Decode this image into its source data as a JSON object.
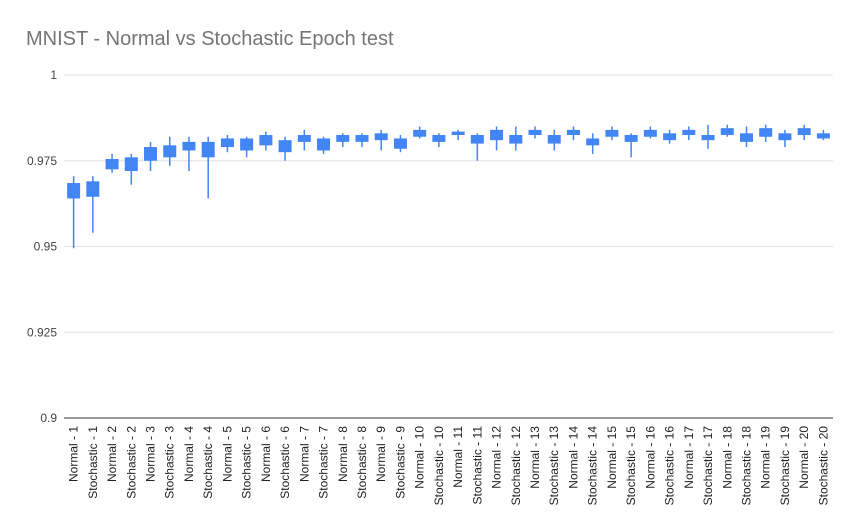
{
  "chart_data": {
    "type": "candlestick",
    "title": "MNIST - Normal vs Stochastic Epoch test",
    "xlabel": "",
    "ylabel": "",
    "ylim": [
      0.9,
      1
    ],
    "yticks": [
      "0.9",
      "0.925",
      "0.95",
      "0.975",
      "1"
    ],
    "grid": true,
    "legend": "none",
    "colors": {
      "box": "#4285f4",
      "grid": "#e0e0e0",
      "axis": "#333333",
      "title": "#757575",
      "text": "#444444"
    },
    "categories": [
      "Normal - 1",
      "Stochastic - 1",
      "Normal - 2",
      "Stochastic - 2",
      "Normal - 3",
      "Stochastic - 3",
      "Normal - 4",
      "Stochastic - 4",
      "Normal - 5",
      "Stochastic - 5",
      "Normal - 6",
      "Stochastic - 6",
      "Normal - 7",
      "Stochastic - 7",
      "Normal - 8",
      "Stochastic - 8",
      "Normal - 9",
      "Stochastic - 9",
      "Normal - 10",
      "Stochastic - 10",
      "Normal - 11",
      "Stochastic - 11",
      "Normal - 12",
      "Stochastic - 12",
      "Normal - 13",
      "Stochastic - 13",
      "Normal - 14",
      "Stochastic - 14",
      "Normal - 15",
      "Stochastic - 15",
      "Normal - 16",
      "Stochastic - 16",
      "Normal - 17",
      "Stochastic - 17",
      "Normal - 18",
      "Stochastic - 18",
      "Normal - 19",
      "Stochastic - 19",
      "Normal - 20",
      "Stochastic - 20"
    ],
    "low": [
      0.9495,
      0.954,
      0.9715,
      0.968,
      0.972,
      0.9735,
      0.972,
      0.964,
      0.9775,
      0.976,
      0.978,
      0.975,
      0.978,
      0.977,
      0.979,
      0.979,
      0.978,
      0.9775,
      0.9815,
      0.979,
      0.981,
      0.975,
      0.978,
      0.978,
      0.9815,
      0.978,
      0.981,
      0.977,
      0.981,
      0.976,
      0.9815,
      0.98,
      0.981,
      0.9785,
      0.982,
      0.979,
      0.9805,
      0.979,
      0.981,
      0.981
    ],
    "box_bottom": [
      0.964,
      0.9645,
      0.9725,
      0.972,
      0.975,
      0.976,
      0.978,
      0.976,
      0.979,
      0.978,
      0.9795,
      0.9775,
      0.9805,
      0.978,
      0.9805,
      0.9805,
      0.981,
      0.9785,
      0.982,
      0.9805,
      0.9825,
      0.98,
      0.981,
      0.98,
      0.9825,
      0.98,
      0.9825,
      0.9795,
      0.982,
      0.9805,
      0.982,
      0.981,
      0.9825,
      0.981,
      0.9825,
      0.9805,
      0.982,
      0.981,
      0.9825,
      0.9815
    ],
    "box_top": [
      0.9685,
      0.969,
      0.9755,
      0.976,
      0.979,
      0.9795,
      0.9805,
      0.9805,
      0.9815,
      0.9815,
      0.9825,
      0.981,
      0.9825,
      0.9815,
      0.9825,
      0.9825,
      0.983,
      0.9815,
      0.984,
      0.9825,
      0.9835,
      0.9825,
      0.984,
      0.9825,
      0.984,
      0.9825,
      0.984,
      0.9815,
      0.984,
      0.9825,
      0.984,
      0.983,
      0.984,
      0.9825,
      0.9845,
      0.983,
      0.9845,
      0.983,
      0.9845,
      0.983
    ],
    "high": [
      0.9705,
      0.9705,
      0.977,
      0.977,
      0.9805,
      0.982,
      0.982,
      0.982,
      0.9825,
      0.982,
      0.9835,
      0.982,
      0.984,
      0.982,
      0.983,
      0.983,
      0.984,
      0.9825,
      0.985,
      0.983,
      0.984,
      0.983,
      0.985,
      0.985,
      0.985,
      0.984,
      0.985,
      0.983,
      0.985,
      0.983,
      0.985,
      0.984,
      0.985,
      0.9855,
      0.9855,
      0.985,
      0.9855,
      0.984,
      0.9855,
      0.984
    ]
  }
}
